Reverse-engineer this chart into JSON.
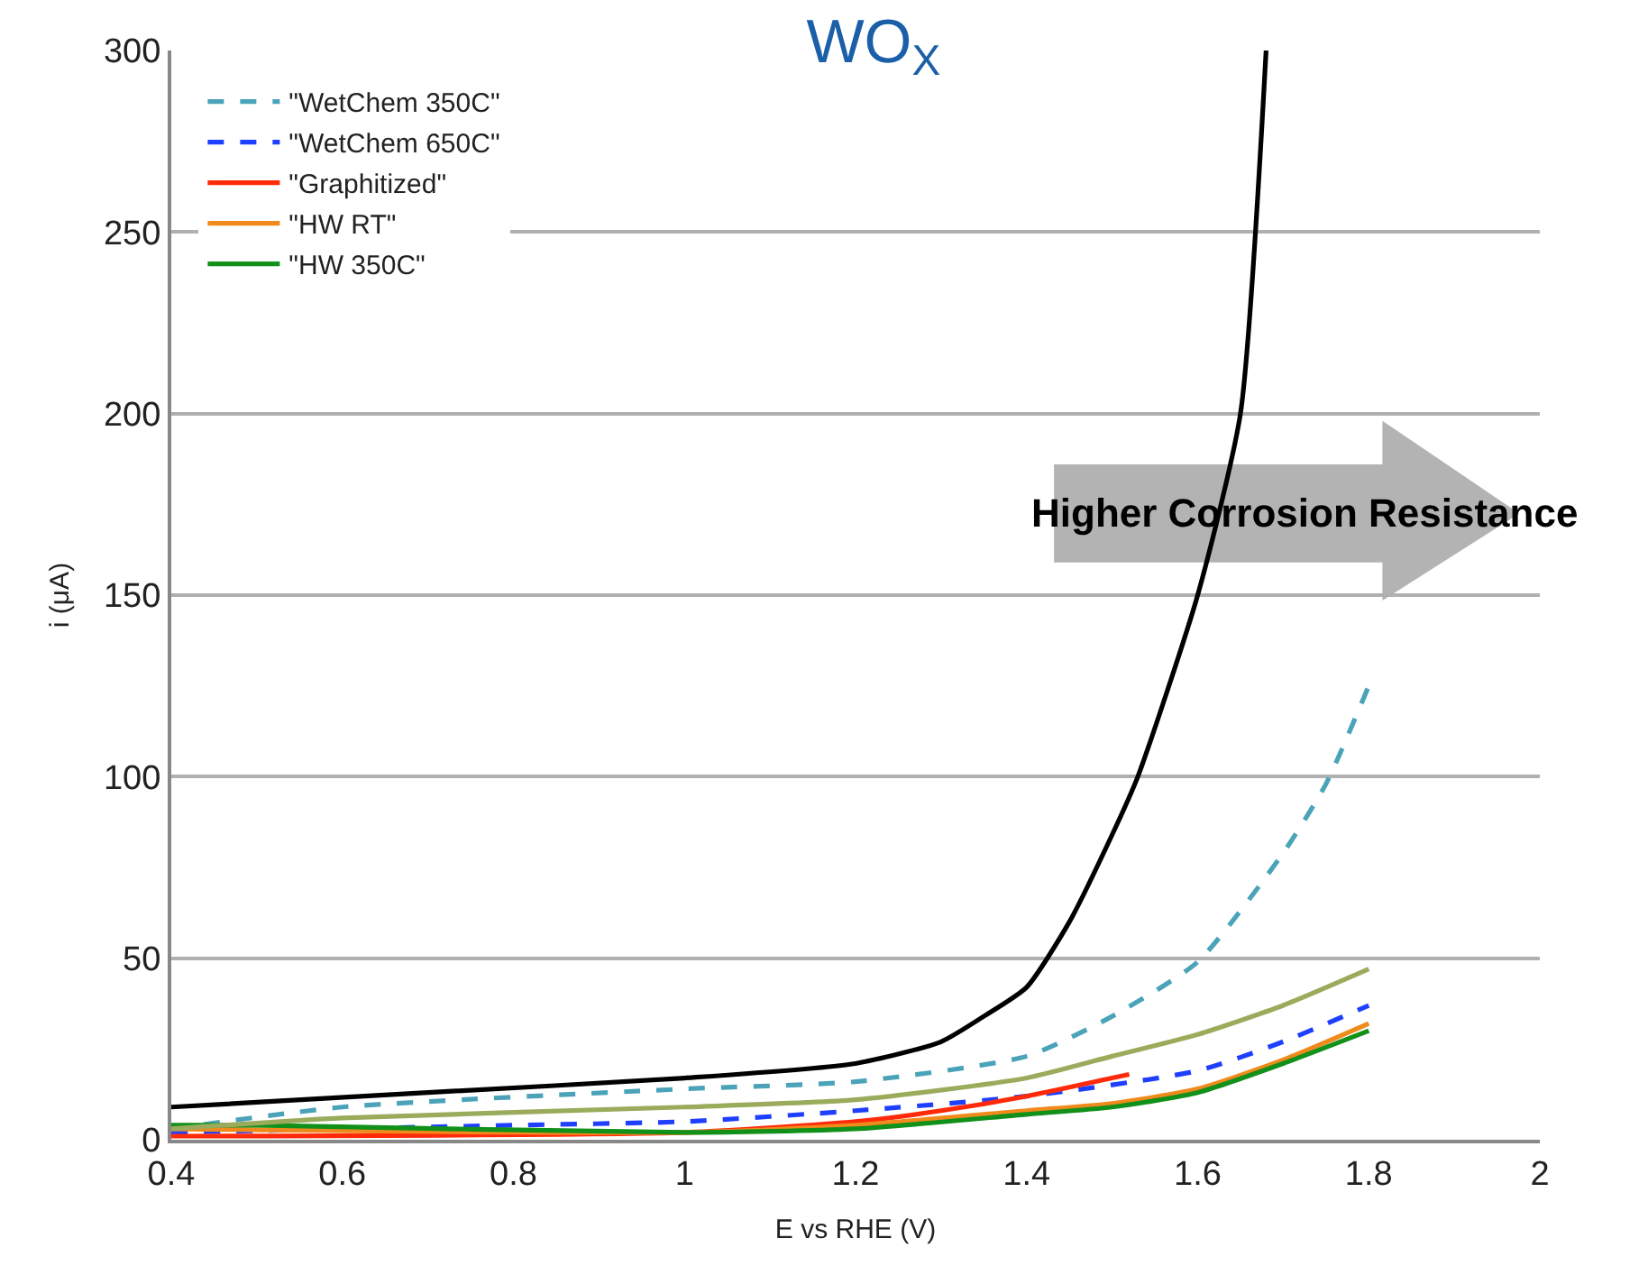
{
  "chart_data": {
    "type": "line",
    "title": "WO$_{X}$",
    "xlabel": "E vs RHE (V)",
    "ylabel": "i (μA)",
    "xlim": [
      0.4,
      2
    ],
    "xticks": [
      {
        "value": 0.4,
        "label": "0.4"
      },
      {
        "value": 0.6,
        "label": "0.6"
      },
      {
        "value": 0.8,
        "label": "0.8"
      },
      1,
      {
        "value": 1.2,
        "label": "1.2"
      },
      {
        "value": 1.4,
        "label": "1.4"
      },
      {
        "value": 1.6,
        "label": "1.6"
      },
      {
        "value": 1.8,
        "label": "1.8"
      },
      2
    ],
    "ylim": [
      0,
      300
    ],
    "yticks": [
      0,
      50,
      100,
      150,
      200,
      250,
      300
    ],
    "grid": "y",
    "legend": "top left",
    "annotations": [
      "Higher Corrosion Resistance"
    ],
    "series": [
      {
        "color": "#000000",
        "line_style": "solid",
        "x": [
          0.4,
          0.7,
          1.0,
          1.2,
          1.3,
          1.35,
          1.4,
          1.45,
          1.5,
          1.53,
          1.6,
          1.65,
          1.68
        ],
        "values": [
          9,
          13,
          17,
          21,
          27,
          34,
          42,
          60,
          84,
          100,
          150,
          200,
          300
        ]
      },
      {
        "name": "\"WetChem 350C\"",
        "color": "#4aa3b8",
        "line_style": "dashed",
        "x": [
          0.4,
          0.6,
          1.0,
          1.2,
          1.4,
          1.5,
          1.6,
          1.7,
          1.75,
          1.8
        ],
        "values": [
          3,
          9,
          14,
          16,
          23,
          34,
          49,
          79,
          98,
          125
        ]
      },
      {
        "name": "\"WetChem 650C\"",
        "color": "#1f3fff",
        "line_style": "dashed",
        "x": [
          0.4,
          0.8,
          1.0,
          1.2,
          1.4,
          1.6,
          1.7,
          1.8
        ],
        "values": [
          2,
          4,
          5,
          8,
          12,
          19,
          27,
          37
        ]
      },
      {
        "name": "\"Graphitized\"",
        "color": "#ff2a0a",
        "line_style": "solid",
        "x": [
          0.4,
          1.0,
          1.2,
          1.3,
          1.4,
          1.5,
          1.52
        ],
        "values": [
          1,
          2,
          5,
          8,
          12,
          17,
          18
        ]
      },
      {
        "name": "\"HW RT\"",
        "color": "#f08a1c",
        "line_style": "solid",
        "x": [
          0.4,
          1.0,
          1.2,
          1.4,
          1.5,
          1.6,
          1.7,
          1.8
        ],
        "values": [
          3,
          2,
          4,
          8,
          10,
          14,
          22,
          32
        ]
      },
      {
        "name": "\"HW 350C\"",
        "color": "#11901a",
        "line_style": "solid",
        "x": [
          0.4,
          0.5,
          1.0,
          1.2,
          1.4,
          1.5,
          1.6,
          1.7,
          1.8
        ],
        "values": [
          4,
          4,
          2,
          3,
          7,
          9,
          13,
          21,
          30
        ]
      },
      {
        "color": "#9aab5c",
        "line_style": "solid",
        "x": [
          0.4,
          0.6,
          1.0,
          1.2,
          1.4,
          1.5,
          1.6,
          1.7,
          1.8
        ],
        "values": [
          3,
          6,
          9,
          11,
          17,
          23,
          29,
          37,
          47
        ]
      }
    ]
  }
}
